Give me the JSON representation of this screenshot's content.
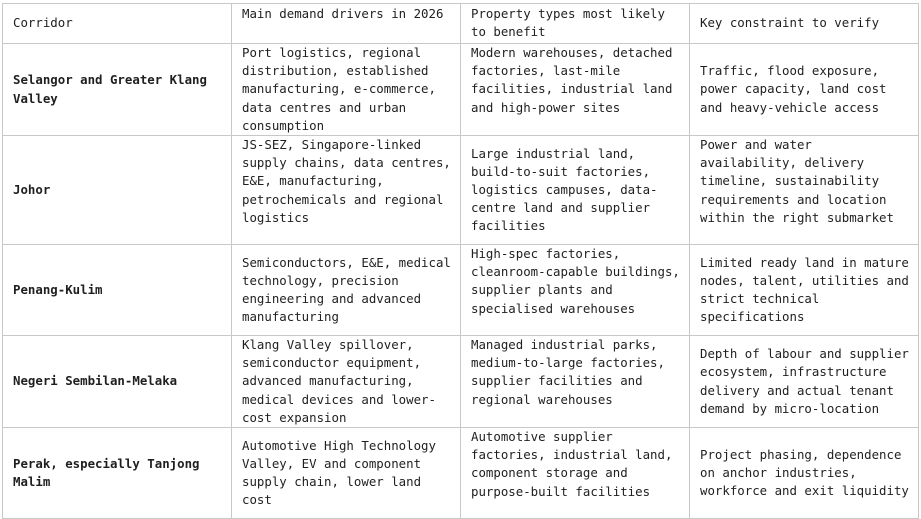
{
  "table": {
    "headers": [
      "Corridor",
      "Main demand drivers in 2026",
      "Property types most likely to benefit",
      "Key constraint to verify"
    ],
    "rows": [
      {
        "corridor": "Selangor and Greater Klang Valley",
        "drivers": "Port logistics, regional distribution, established manufacturing, e-commerce, data centres and urban consumption",
        "property_types": "Modern warehouses, detached factories, last-mile facilities, industrial land and high-power sites",
        "constraint": "Traffic, flood exposure, power capacity, land cost and heavy-vehicle access"
      },
      {
        "corridor": "Johor",
        "drivers": "JS-SEZ, Singapore-linked supply chains, data centres, E&E, manufacturing, petrochemicals and regional logistics",
        "property_types": "Large industrial land, build-to-suit factories, logistics campuses, data-centre land and supplier facilities",
        "constraint": "Power and water availability, delivery timeline, sustainability requirements and location within the right submarket"
      },
      {
        "corridor": "Penang-Kulim",
        "drivers": "Semiconductors, E&E, medical technology, precision engineering and advanced manufacturing",
        "property_types": "High-spec factories, cleanroom-capable buildings, supplier plants and specialised warehouses",
        "constraint": "Limited ready land in mature nodes, talent, utilities and strict technical specifications"
      },
      {
        "corridor": "Negeri Sembilan-Melaka",
        "drivers": "Klang Valley spillover, semiconductor equipment, advanced manufacturing, medical devices and lower-cost expansion",
        "property_types": "Managed industrial parks, medium-to-large factories, supplier facilities and regional warehouses",
        "constraint": "Depth of labour and supplier ecosystem, infrastructure delivery and actual tenant demand by micro-location"
      },
      {
        "corridor": "Perak, especially Tanjong Malim",
        "drivers": "Automotive High Technology Valley, EV and component supply chain, lower land cost",
        "property_types": "Automotive supplier factories, industrial land, component storage and purpose-built facilities",
        "constraint": "Project phasing, dependence on anchor industries, workforce and exit liquidity"
      }
    ]
  }
}
